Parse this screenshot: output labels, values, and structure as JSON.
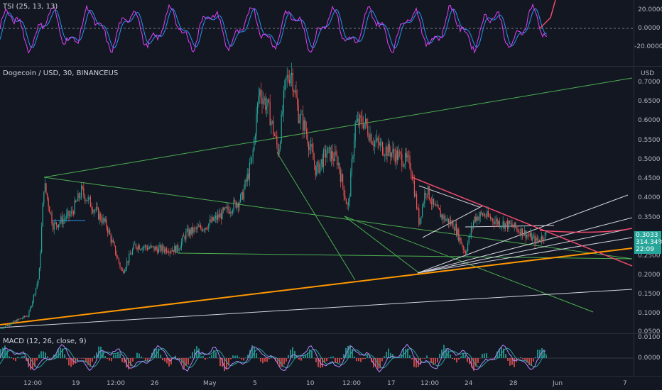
{
  "tsi_pane": {
    "title": "TSI (25, 13, 13)",
    "ticks": [
      "20.0000",
      "0.0000",
      "-20.0000"
    ]
  },
  "main_pane": {
    "title": "Dogecoin / USD, 30, BINANCEUS",
    "currency": "USD",
    "ticks": [
      "0.7000",
      "0.6500",
      "0.6000",
      "0.5500",
      "0.5000",
      "0.4500",
      "0.4000",
      "0.3500",
      "0.3000",
      "0.2500",
      "0.2000",
      "0.1500",
      "0.1000",
      "0.0500"
    ],
    "price_badge": {
      "price": "0.3033",
      "change": "314.34%",
      "countdown": "22:09"
    }
  },
  "macd_pane": {
    "title": "MACD (12, 26, close, 9)",
    "ticks": [
      "0.0100",
      "0.0000"
    ]
  },
  "time_axis": [
    "12:00",
    "19",
    "12:00",
    "26",
    "May",
    "5",
    "10",
    "12:00",
    "17",
    "12:00",
    "24",
    "28",
    "Jun",
    "7"
  ],
  "colors": {
    "background": "#131722",
    "trendline_green": "#4caf50",
    "trendline_orange": "#ff9800",
    "trendline_white": "#d1d4dc",
    "trendline_red": "#ef4a6c",
    "tsi_line": "#e040fb",
    "tsi_signal": "#2196f3",
    "badge": "#26a69a"
  }
}
